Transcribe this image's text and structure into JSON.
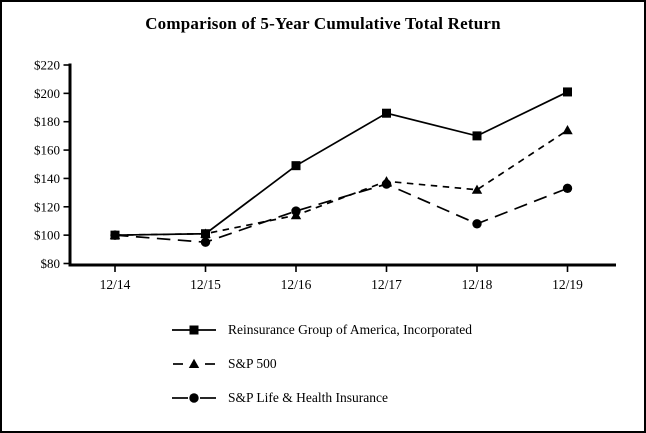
{
  "window": {
    "background": "#ffffff",
    "border_color": "#000000"
  },
  "chart_data": {
    "type": "line",
    "title": "Comparison of 5-Year Cumulative Total Return",
    "color": "#000000",
    "grid": false,
    "legend_position": "bottom",
    "categories": [
      "12/14",
      "12/15",
      "12/16",
      "12/17",
      "12/18",
      "12/19"
    ],
    "series": [
      {
        "name": "Reinsurance Group of America, Incorporated",
        "marker": "square",
        "line": "solid",
        "values": [
          100,
          101,
          149,
          186,
          170,
          201
        ]
      },
      {
        "name": "S&P 500",
        "marker": "triangle",
        "line": "dash",
        "values": [
          100,
          101,
          114,
          138,
          132,
          174
        ]
      },
      {
        "name": "S&P Life & Health Insurance",
        "marker": "circle",
        "line": "long-dash",
        "values": [
          100,
          95,
          117,
          136,
          108,
          133
        ]
      }
    ],
    "y_axis": {
      "min": 80,
      "max": 220,
      "step": 20,
      "ticks": [
        {
          "value": 80,
          "label": "$80"
        },
        {
          "value": 100,
          "label": "$100"
        },
        {
          "value": 120,
          "label": "$120"
        },
        {
          "value": 140,
          "label": "$140"
        },
        {
          "value": 160,
          "label": "$160"
        },
        {
          "value": 180,
          "label": "$180"
        },
        {
          "value": 200,
          "label": "$200"
        },
        {
          "value": 220,
          "label": "$220"
        }
      ]
    },
    "x_axis": {
      "label": ""
    }
  }
}
